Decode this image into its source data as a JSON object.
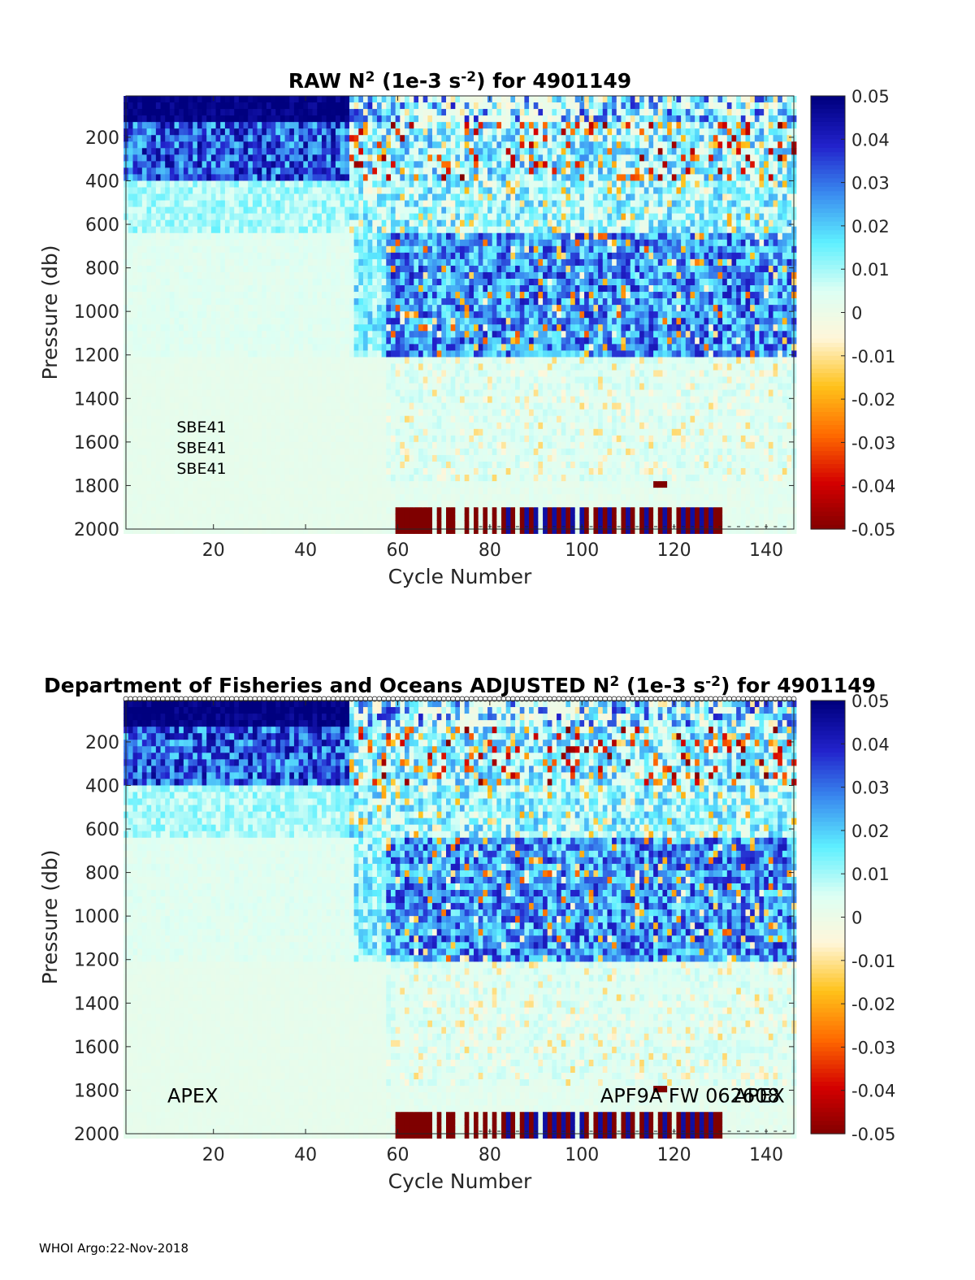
{
  "chart_data": [
    {
      "type": "heatmap",
      "title_prefix": "RAW N",
      "title_sup1": "2",
      "title_mid": " (1e-3 s",
      "title_sup2": "-2",
      "title_suffix": ") for 4901149",
      "xlabel": "Cycle Number",
      "ylabel": "Pressure (db)",
      "xlim": [
        1,
        146
      ],
      "ylim": [
        2000,
        10
      ],
      "xticks": [
        20,
        40,
        60,
        80,
        100,
        120,
        140
      ],
      "yticks": [
        200,
        400,
        600,
        800,
        1000,
        1200,
        1400,
        1600,
        1800,
        2000
      ],
      "clim": [
        -0.05,
        0.05
      ],
      "colorbar_ticks": [
        "0.05",
        "0.04",
        "0.03",
        "0.02",
        "0.01",
        "0",
        "-0.01",
        "-0.02",
        "-0.03",
        "-0.04",
        "-0.05"
      ],
      "colormap": [
        "#7f0000",
        "#d40000",
        "#ff6a00",
        "#ffc21a",
        "#fff6d9",
        "#dcfff4",
        "#5ef0ff",
        "#3a8cf0",
        "#2222cc",
        "#00007f"
      ],
      "annotations": [
        {
          "text": "SBE41",
          "x": 12,
          "y": 1530
        },
        {
          "text": "SBE41",
          "x": 12,
          "y": 1625
        },
        {
          "text": "SBE41",
          "x": 12,
          "y": 1720
        }
      ],
      "dense_top_marks": false
    },
    {
      "type": "heatmap",
      "title_prefix": "Department of Fisheries and Oceans  ADJUSTED N",
      "title_sup1": "2",
      "title_mid": " (1e-3 s",
      "title_sup2": "-2",
      "title_suffix": ") for 4901149",
      "xlabel": "Cycle Number",
      "ylabel": "Pressure (db)",
      "xlim": [
        1,
        146
      ],
      "ylim": [
        2000,
        10
      ],
      "xticks": [
        20,
        40,
        60,
        80,
        100,
        120,
        140
      ],
      "yticks": [
        200,
        400,
        600,
        800,
        1000,
        1200,
        1400,
        1600,
        1800,
        2000
      ],
      "clim": [
        -0.05,
        0.05
      ],
      "colorbar_ticks": [
        "0.05",
        "0.04",
        "0.03",
        "0.02",
        "0.01",
        "0",
        "-0.01",
        "-0.02",
        "-0.03",
        "-0.04",
        "-0.05"
      ],
      "colormap": [
        "#7f0000",
        "#d40000",
        "#ff6a00",
        "#ffc21a",
        "#fff6d9",
        "#dcfff4",
        "#5ef0ff",
        "#3a8cf0",
        "#2222cc",
        "#00007f"
      ],
      "annotations": [
        {
          "text": "APEX",
          "x": 10,
          "y": 1830
        },
        {
          "text": "APF9A FW 062608",
          "x": 104,
          "y": 1830
        },
        {
          "text": "APEX",
          "x": 133,
          "y": 1830
        }
      ],
      "dense_top_marks": true
    }
  ],
  "footer": "WHOI Argo:22-Nov-2018"
}
